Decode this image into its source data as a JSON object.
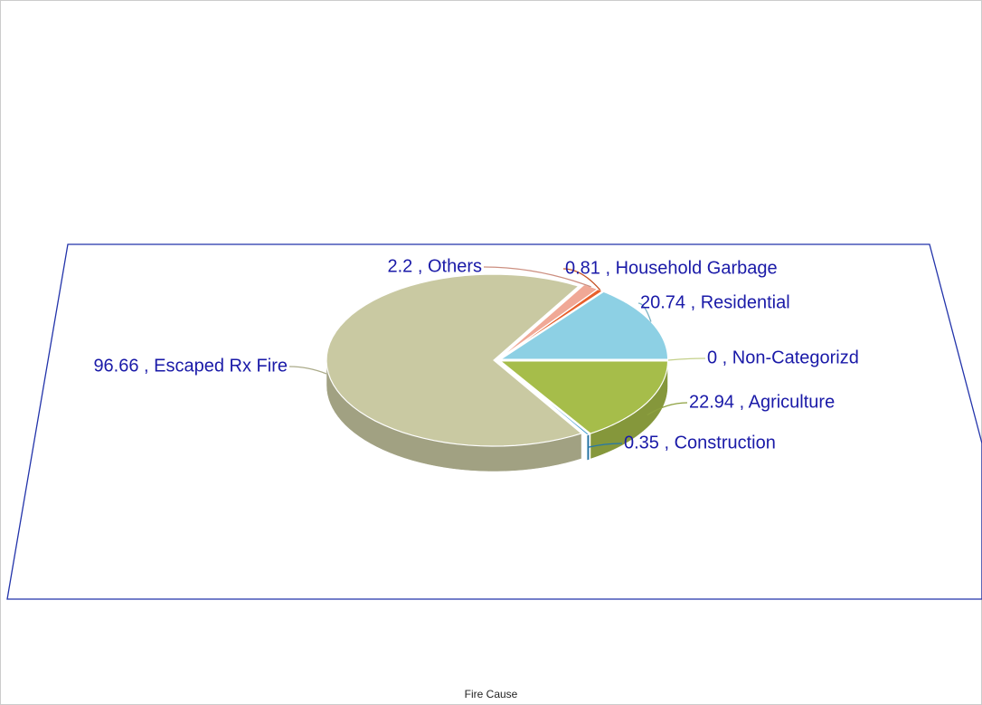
{
  "chart_data": {
    "type": "pie",
    "x_label": "Fire Cause",
    "values": [
      0,
      20.74,
      0.81,
      2.2,
      96.66,
      0.35,
      22.94
    ],
    "value_labels": [
      "0 , Non-Categorizd",
      "20.74 , Residential",
      "0.81 , Household Garbage",
      "2.2 , Others",
      "96.66 , Escaped Rx Fire",
      "0.35 , Construction",
      "22.94 , Agriculture"
    ],
    "colors": [
      "#e6f5a2",
      "#8dd0e4",
      "#e8602c",
      "#f0a896",
      "#c9c9a2",
      "#2a8cc8",
      "#a6bd4a"
    ]
  }
}
